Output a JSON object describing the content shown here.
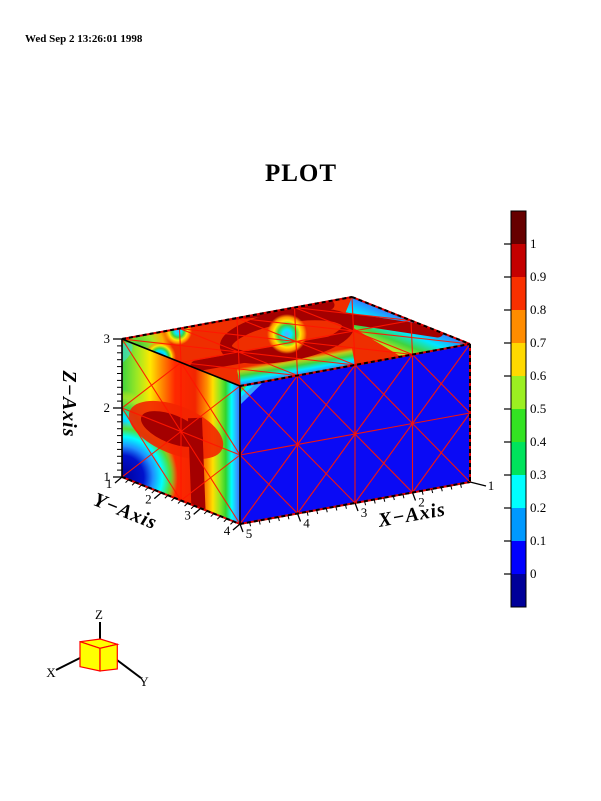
{
  "meta": {
    "timestamp": "Wed Sep  2 13:26:01 1998"
  },
  "title": "PLOT",
  "chart_data": {
    "type": "heatmap",
    "subtype": "3d-box-surface-contour-plot",
    "title": "PLOT",
    "axes": {
      "x": {
        "label": "X−Axis",
        "ticks": [
          "5",
          "4",
          "3",
          "2",
          "1"
        ],
        "range": [
          1,
          5
        ]
      },
      "y": {
        "label": "Y−Axis",
        "ticks": [
          "1",
          "2",
          "3",
          "4"
        ],
        "range": [
          1,
          4
        ]
      },
      "z": {
        "label": "Z−Axis",
        "ticks": [
          "3",
          "2",
          "1"
        ],
        "range": [
          1,
          3
        ]
      }
    },
    "colorbar": {
      "range": [
        0,
        1
      ],
      "tick_labels": [
        "1",
        "0.9",
        "0.8",
        "0.7",
        "0.6",
        "0.5",
        "0.4",
        "0.3",
        "0.2",
        "0.1",
        "0"
      ],
      "colors_top_to_bottom": [
        "#660000",
        "#c40000",
        "#f93000",
        "#ff8c00",
        "#ffd900",
        "#9bef21",
        "#33e322",
        "#00e35c",
        "#00ffff",
        "#0099ff",
        "#0000ff",
        "#000099"
      ]
    },
    "mesh_color": "#ff1500",
    "faces": {
      "front_face_value": "uniform low (~0, blue) with triangulated red mesh, 4x2 cells",
      "top_face_value": "high (~0.8-1, red/dark-red) with low-value blue/cyan nodes and a blue band along the back-right edge",
      "left_face_value": "vertical rainbow banding: low (blue) at outer edges, high (dark red) stripe near right third"
    }
  },
  "orientation_cube": {
    "x_label": "X",
    "y_label": "Y",
    "z_label": "Z"
  }
}
